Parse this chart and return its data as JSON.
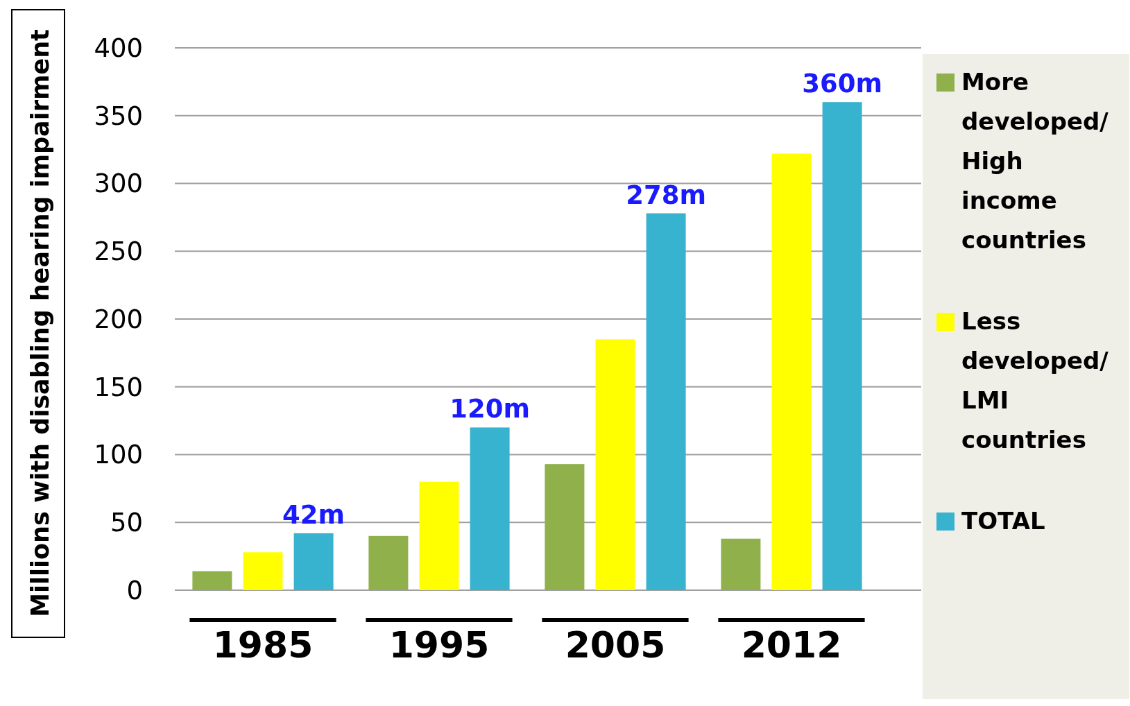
{
  "chart_data": {
    "type": "bar",
    "ylabel": "Millions  with disabling hearing impairment",
    "categories": [
      "1985",
      "1995",
      "2005",
      "2012"
    ],
    "series": [
      {
        "name": "More developed/ High income countries",
        "color": "#8fb04a",
        "values": [
          14,
          40,
          93,
          38
        ]
      },
      {
        "name": "Less developed/ LMI countries",
        "color": "#ffff00",
        "values": [
          28,
          80,
          185,
          322
        ]
      },
      {
        "name": "TOTAL",
        "color": "#38b3cf",
        "values": [
          42,
          120,
          278,
          360
        ],
        "value_labels": [
          "42m",
          "120m",
          "278m",
          "360m"
        ]
      }
    ],
    "ylim": [
      0,
      400
    ],
    "yticks": [
      0,
      50,
      100,
      150,
      200,
      250,
      300,
      350,
      400
    ],
    "grid": "y",
    "legend": "right"
  }
}
